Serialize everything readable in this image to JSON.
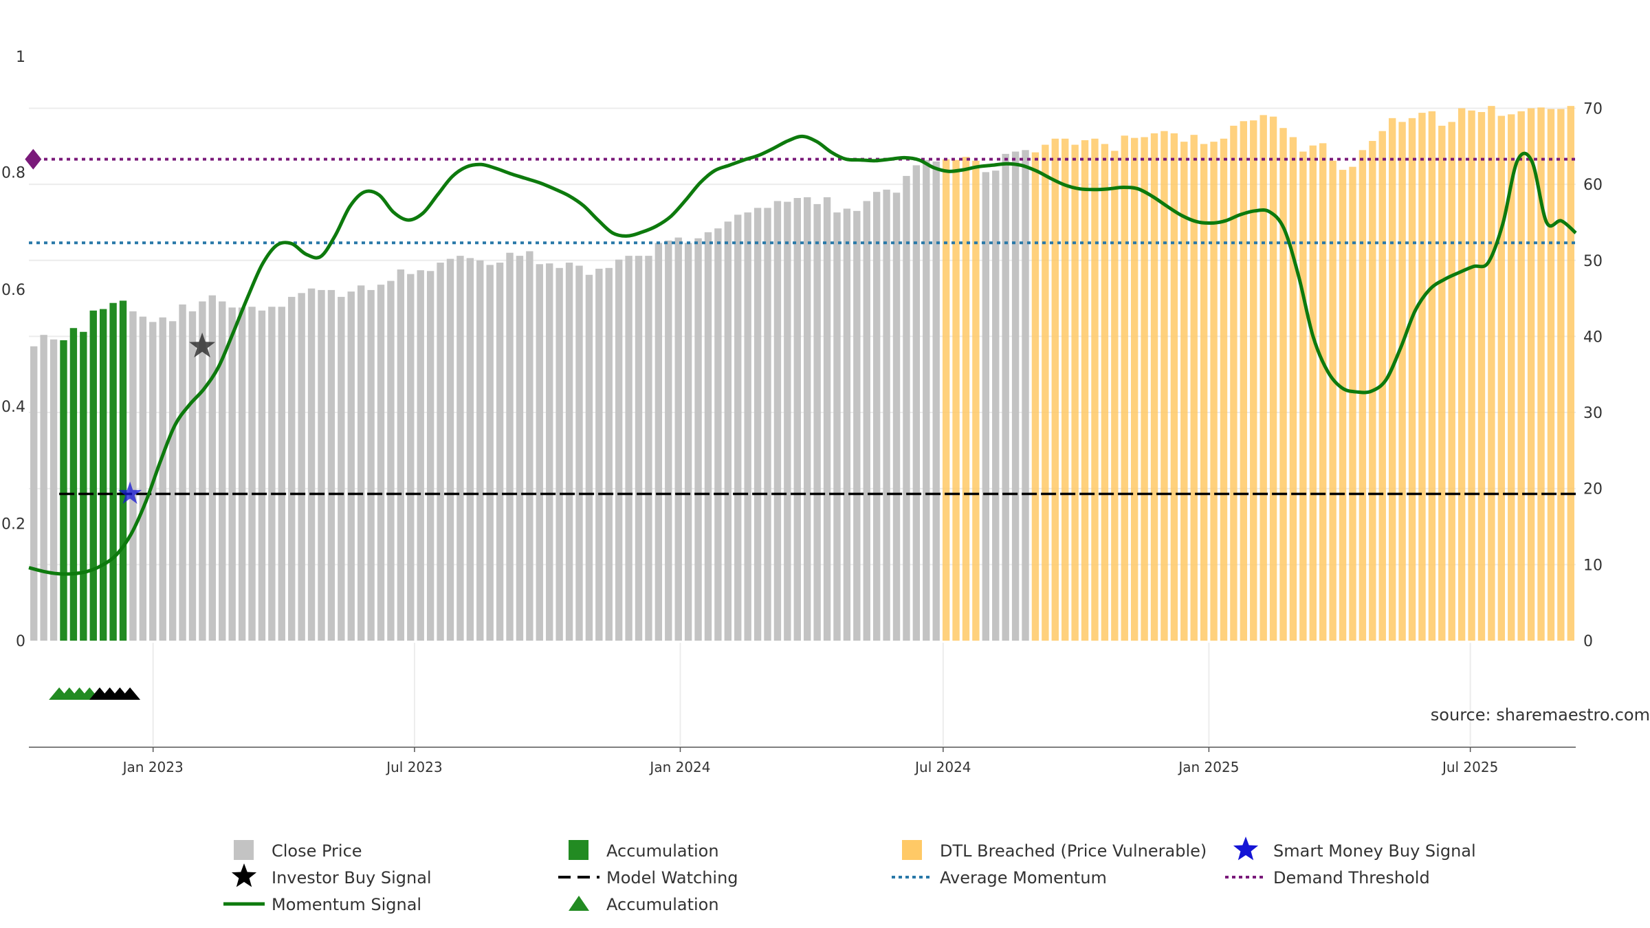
{
  "source": "source: sharemaestro.com",
  "colors": {
    "close_price": "#c3c3c3",
    "accumulation": "#228b22",
    "dtl_breached": "#ffc966",
    "momentum": "#0d7a0d",
    "model_watching": "#000000",
    "average_momentum": "#2878a8",
    "demand_threshold": "#7a1a7a",
    "smart_money": "#1515d5",
    "investor_buy": "#000000",
    "grid": "#ececec"
  },
  "legend": [
    {
      "key": "close_price",
      "label": "Close Price",
      "symbol": "square"
    },
    {
      "key": "accumulation",
      "label": "Accumulation",
      "symbol": "square"
    },
    {
      "key": "dtl_breached",
      "label": "DTL Breached (Price Vulnerable)",
      "symbol": "square"
    },
    {
      "key": "smart_money",
      "label": "Smart Money Buy Signal",
      "symbol": "star"
    },
    {
      "key": "investor_buy",
      "label": "Investor Buy Signal",
      "symbol": "star"
    },
    {
      "key": "model_watching",
      "label": "Model Watching",
      "symbol": "dash"
    },
    {
      "key": "average_momentum",
      "label": "Average Momentum",
      "symbol": "dot"
    },
    {
      "key": "demand_threshold",
      "label": "Demand Threshold",
      "symbol": "dot"
    },
    {
      "key": "momentum",
      "label": "Momentum Signal",
      "symbol": "line"
    },
    {
      "key": "accumulation",
      "label": "Accumulation",
      "symbol": "triangle"
    }
  ],
  "chart_data": {
    "type": "bar",
    "x_start": "2022-10-07",
    "x_end": "2025-09-12",
    "x_ticks": [
      {
        "date": "2023-01-01",
        "label": "Jan 2023"
      },
      {
        "date": "2023-07-01",
        "label": "Jul 2023"
      },
      {
        "date": "2024-01-01",
        "label": "Jan 2024"
      },
      {
        "date": "2024-07-01",
        "label": "Jul 2024"
      },
      {
        "date": "2025-01-01",
        "label": "Jan 2025"
      },
      {
        "date": "2025-07-01",
        "label": "Jul 2025"
      }
    ],
    "y_left": {
      "range": [
        0,
        1
      ],
      "ticks": [
        0,
        0.2,
        0.4,
        0.6,
        0.8
      ],
      "top_label": "1"
    },
    "y_right": {
      "range": [
        0,
        77
      ],
      "ticks": [
        0,
        10,
        20,
        30,
        40,
        50,
        60,
        70
      ]
    },
    "price_bars": {
      "values": [
        38.7,
        40.2,
        39.6,
        39.5,
        41.1,
        40.6,
        43.4,
        43.6,
        44.4,
        44.7,
        43.3,
        42.6,
        41.9,
        42.5,
        42.0,
        44.2,
        43.3,
        44.6,
        45.4,
        44.6,
        43.8,
        43.8,
        43.9,
        43.4,
        43.9,
        43.9,
        45.2,
        45.7,
        46.3,
        46.1,
        46.1,
        45.2,
        45.9,
        46.7,
        46.1,
        46.8,
        47.3,
        48.8,
        48.2,
        48.7,
        48.6,
        49.7,
        50.2,
        50.6,
        50.3,
        50.0,
        49.4,
        49.7,
        51.0,
        50.6,
        51.2,
        49.5,
        49.6,
        49.0,
        49.7,
        49.3,
        48.1,
        48.9,
        49.0,
        50.1,
        50.6,
        50.6,
        50.6,
        52.3,
        52.6,
        53.0,
        52.3,
        52.9,
        53.7,
        54.2,
        55.1,
        56.0,
        56.3,
        56.9,
        56.9,
        57.8,
        57.7,
        58.2,
        58.3,
        57.4,
        58.3,
        56.3,
        56.8,
        56.5,
        57.8,
        59.0,
        59.3,
        58.9,
        61.1,
        62.5,
        63.2,
        63.0,
        63.3,
        63.2,
        63.6,
        63.1,
        61.6,
        61.8,
        64.0,
        64.3,
        64.5,
        64.2,
        65.2,
        66.0,
        66.0,
        65.2,
        65.8,
        66.0,
        65.3,
        64.4,
        66.4,
        66.1,
        66.2,
        66.7,
        67.0,
        66.7,
        65.6,
        66.5,
        65.3,
        65.6,
        66.0,
        67.7,
        68.3,
        68.4,
        69.1,
        68.9,
        67.4,
        66.2,
        64.3,
        65.1,
        65.4,
        63.1,
        61.9,
        62.3,
        64.5,
        65.7,
        67.0,
        68.7,
        68.2,
        68.7,
        69.4,
        69.6,
        67.7,
        68.2,
        70.0,
        69.7,
        69.5,
        70.3,
        69.0,
        69.2,
        69.6,
        70.0,
        70.1,
        69.9,
        69.9,
        70.3
      ],
      "accumulation_index": [
        3,
        4,
        5,
        6,
        7,
        8,
        9
      ],
      "dtl_index": [
        [
          92,
          95
        ],
        [
          101,
          157
        ],
        [
          159,
          160
        ]
      ],
      "dtl_index_note": "inclusive index ranges of bars drawn in DTL Breached colour"
    },
    "momentum": {
      "values": [
        9.6,
        9.1,
        8.8,
        8.8,
        9.1,
        9.9,
        11.3,
        14.0,
        18.2,
        23.5,
        28.3,
        31.0,
        33.1,
        36.0,
        40.5,
        45.2,
        49.5,
        52.0,
        52.2,
        50.8,
        50.5,
        53.3,
        57.1,
        59.0,
        58.6,
        56.3,
        55.3,
        56.2,
        58.6,
        61.0,
        62.3,
        62.6,
        62.1,
        61.4,
        60.8,
        60.2,
        59.4,
        58.5,
        57.2,
        55.3,
        53.6,
        53.2,
        53.7,
        54.5,
        55.8,
        57.9,
        60.2,
        61.8,
        62.5,
        63.2,
        63.8,
        64.7,
        65.7,
        66.3,
        65.6,
        64.2,
        63.3,
        63.2,
        63.1,
        63.3,
        63.5,
        63.2,
        62.2,
        61.7,
        61.9,
        62.3,
        62.5,
        62.7,
        62.5,
        61.8,
        60.8,
        59.9,
        59.4,
        59.3,
        59.4,
        59.6,
        59.4,
        58.4,
        57.1,
        55.9,
        55.1,
        54.9,
        55.2,
        56.0,
        56.5,
        56.4,
        54.2,
        48.0,
        40.0,
        35.4,
        33.2,
        32.7,
        32.8,
        34.3,
        38.5,
        43.4,
        46.2,
        47.5,
        48.4,
        49.2,
        49.7,
        54.8,
        63.1,
        63.0,
        55.0,
        55.2,
        53.6
      ],
      "x_start": "2022-10-07",
      "x_end": "2025-09-12"
    },
    "average_momentum": 52.3,
    "demand_threshold": 63.3,
    "model_watching": {
      "value": 19.3,
      "x_start": "2022-10-28"
    },
    "smart_money_buy": [
      {
        "date": "2022-12-16",
        "value": 19.3
      }
    ],
    "investor_buy": [
      {
        "date": "2023-02-04",
        "value": 38.7
      }
    ],
    "demand_marker": [
      {
        "date": "2022-10-10",
        "value": 63.3
      }
    ],
    "accumulation_triangles": {
      "dates": [
        "2022-10-28",
        "2022-11-04",
        "2022-11-11",
        "2022-11-18",
        "2022-11-25",
        "2022-12-02",
        "2022-12-09",
        "2022-12-16"
      ],
      "green_count": 4
    },
    "grid": true,
    "legend_position": "bottom"
  }
}
